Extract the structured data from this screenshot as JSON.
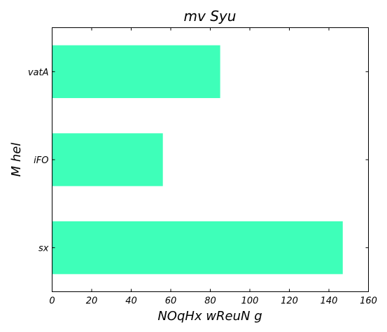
{
  "chart_data": {
    "type": "bar",
    "orientation": "horizontal",
    "title": "mv  Syu",
    "xlabel": "NOqHx wReuN  g",
    "ylabel": "M hel",
    "categories": [
      "vatA",
      "iFO",
      "sx"
    ],
    "values": [
      85,
      56,
      147
    ],
    "xlim": [
      0,
      160
    ],
    "xticks": [
      0,
      20,
      40,
      60,
      80,
      100,
      120,
      140,
      160
    ],
    "bar_color": "#3effb9",
    "grid": false,
    "legend": "none"
  }
}
